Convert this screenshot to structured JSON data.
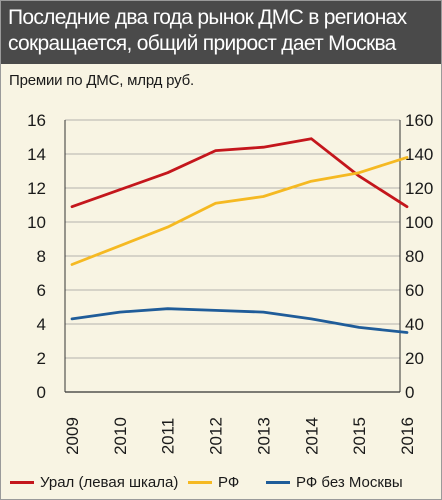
{
  "title_line1": "Последние два года рынок ДМС в регионах",
  "title_line2": "сокращается, общий прирост дает Москва",
  "colors": {
    "title_bg": "#4a4a4a",
    "background": "#f8f4e3",
    "ural": "#c4161c",
    "rf": "#f5b922",
    "rf_ex_moscow": "#1f5c99",
    "axis": "#333333",
    "grid": "#9c9c9c"
  },
  "chart_data": {
    "type": "line",
    "ylabel": "Премии по ДМС, млрд руб.",
    "x": [
      "2009",
      "2010",
      "2011",
      "2012",
      "2013",
      "2014",
      "2015",
      "2016"
    ],
    "ylim_left": [
      0,
      16
    ],
    "yticks_left": [
      "0",
      "2",
      "4",
      "6",
      "8",
      "10",
      "12",
      "14",
      "16"
    ],
    "ylim_right": [
      0,
      160
    ],
    "yticks_right": [
      "0",
      "20",
      "40",
      "60",
      "80",
      "100",
      "120",
      "140",
      "160"
    ],
    "grid": true,
    "legend_position": "bottom",
    "series": [
      {
        "name": "Урал (левая шкала)",
        "axis": "left",
        "color_key": "ural",
        "values": [
          10.9,
          11.9,
          12.9,
          14.2,
          14.4,
          14.9,
          12.7,
          10.9
        ]
      },
      {
        "name": "РФ",
        "axis": "right",
        "color_key": "rf",
        "values": [
          75,
          86,
          97,
          111,
          115,
          124,
          129,
          138
        ]
      },
      {
        "name": "РФ без Москвы",
        "axis": "right",
        "color_key": "rf_ex_moscow",
        "values": [
          43,
          47,
          49,
          48,
          47,
          43,
          38,
          35
        ]
      }
    ]
  }
}
